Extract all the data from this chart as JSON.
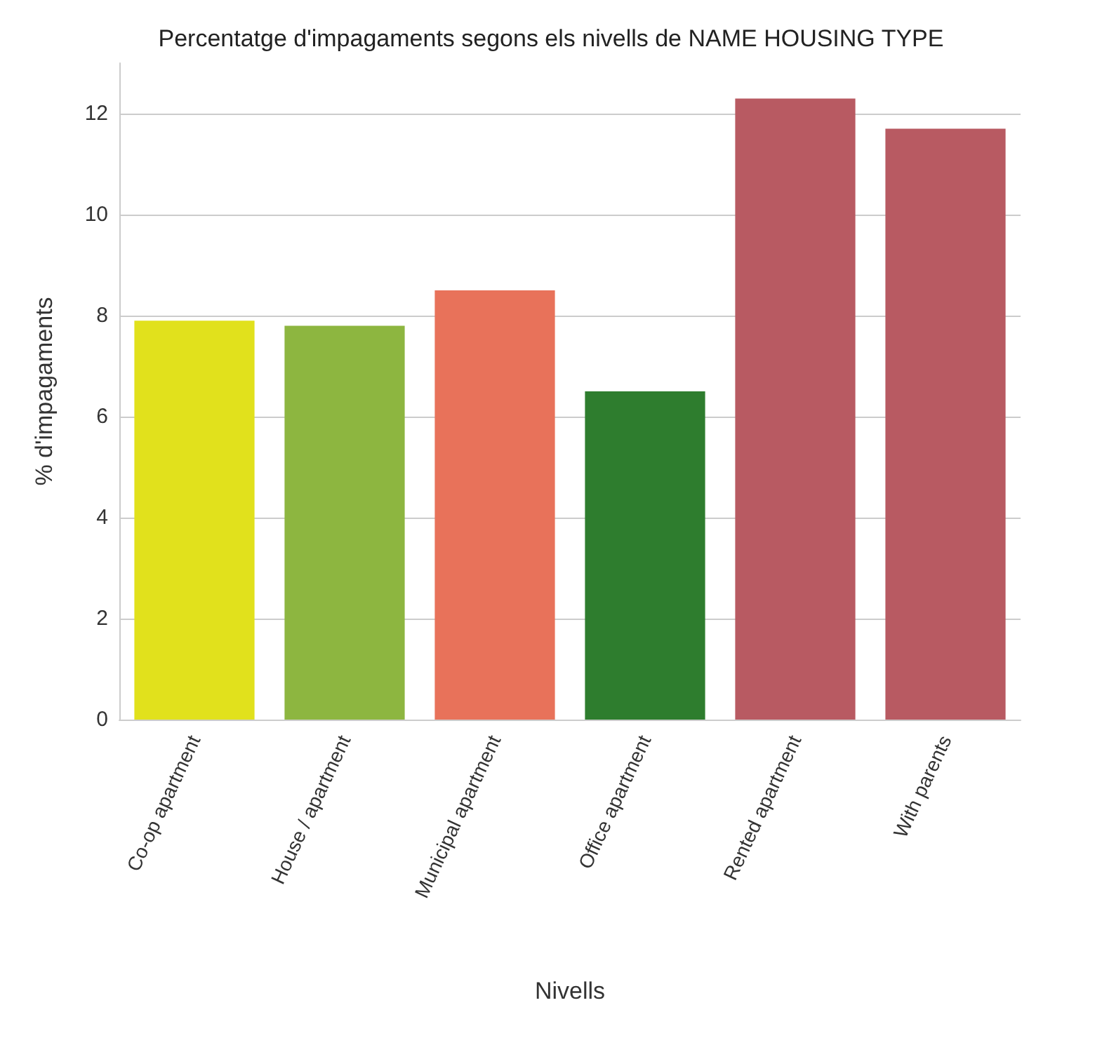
{
  "chart_data": {
    "type": "bar",
    "title": "Percentatge d'impagaments segons els nivells de NAME HOUSING TYPE",
    "xlabel": "Nivells",
    "ylabel": "% d'impagaments",
    "categories": [
      "Co-op apartment",
      "House / apartment",
      "Municipal apartment",
      "Office apartment",
      "Rented apartment",
      "With parents"
    ],
    "values": [
      7.9,
      7.8,
      8.5,
      6.5,
      12.3,
      11.7
    ],
    "colors": [
      "#e1e11c",
      "#8db640",
      "#e8725a",
      "#2e7d2e",
      "#b85a62",
      "#b85a62"
    ],
    "ylim": [
      0,
      13
    ],
    "yticks": [
      0,
      2,
      4,
      6,
      8,
      10,
      12
    ],
    "grid": "y"
  }
}
